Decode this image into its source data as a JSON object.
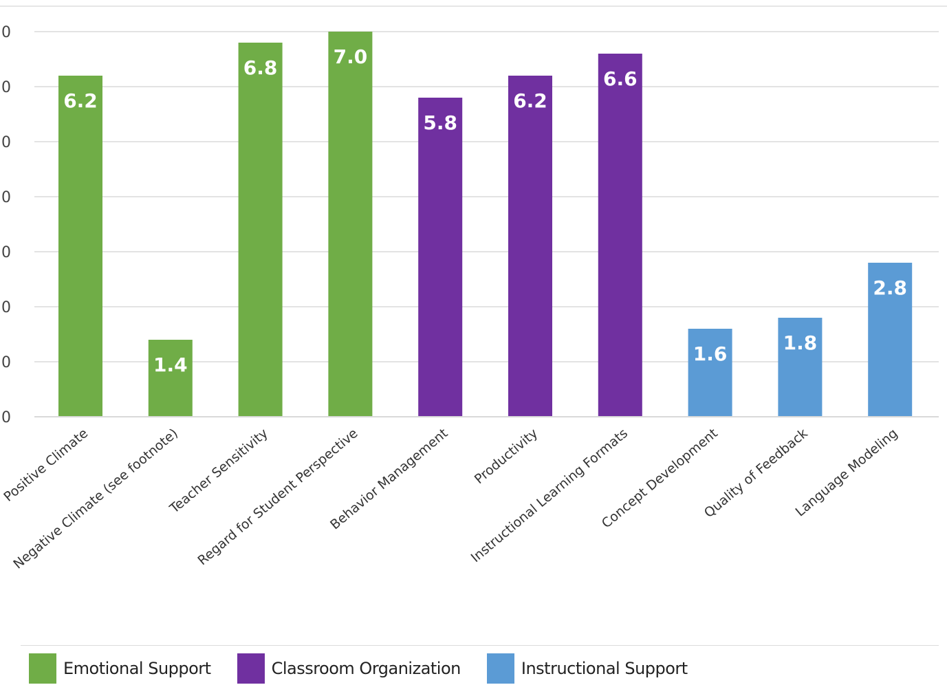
{
  "chart_data": {
    "type": "bar",
    "title": "",
    "xlabel": "",
    "ylabel": "",
    "ylim": [
      0,
      7
    ],
    "yticks": [
      "0",
      "0",
      "0",
      "0",
      "0",
      "0",
      "0",
      "0"
    ],
    "grid": true,
    "legend_position": "bottom-left",
    "categories": [
      "Positive Climate",
      "Negative Climate (see footnote)",
      "Teacher Sensitivity",
      "Regard for Student Perspective",
      "Behavior Management",
      "Productivity",
      "Instructional Learning Formats",
      "Concept Development",
      "Quality of Feedback",
      "Language Modeling"
    ],
    "values": [
      6.2,
      1.4,
      6.8,
      7.0,
      5.8,
      6.2,
      6.6,
      1.6,
      1.8,
      2.8
    ],
    "value_labels": [
      "6.2",
      "1.4",
      "6.8",
      "7.0",
      "5.8",
      "6.2",
      "6.6",
      "1.6",
      "1.8",
      "2.8"
    ],
    "groups": [
      "Emotional Support",
      "Emotional Support",
      "Emotional Support",
      "Emotional Support",
      "Classroom Organization",
      "Classroom Organization",
      "Classroom Organization",
      "Instructional Support",
      "Instructional Support",
      "Instructional Support"
    ],
    "series": [
      {
        "name": "Emotional Support",
        "color": "#70AD47"
      },
      {
        "name": "Classroom Organization",
        "color": "#7030A0"
      },
      {
        "name": "Instructional Support",
        "color": "#5B9BD5"
      }
    ]
  }
}
